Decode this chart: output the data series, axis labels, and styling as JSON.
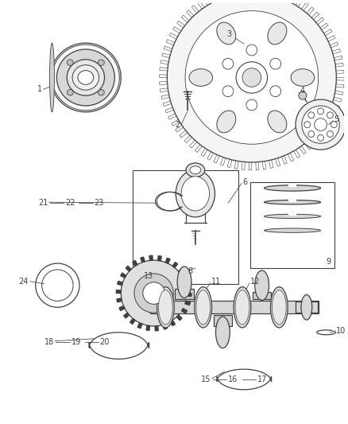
{
  "bg_color": "#ffffff",
  "line_color": "#404040",
  "label_color": "#404040",
  "fig_width": 4.38,
  "fig_height": 5.33,
  "font_size": 7.0,
  "label_font": "DejaVu Sans"
}
